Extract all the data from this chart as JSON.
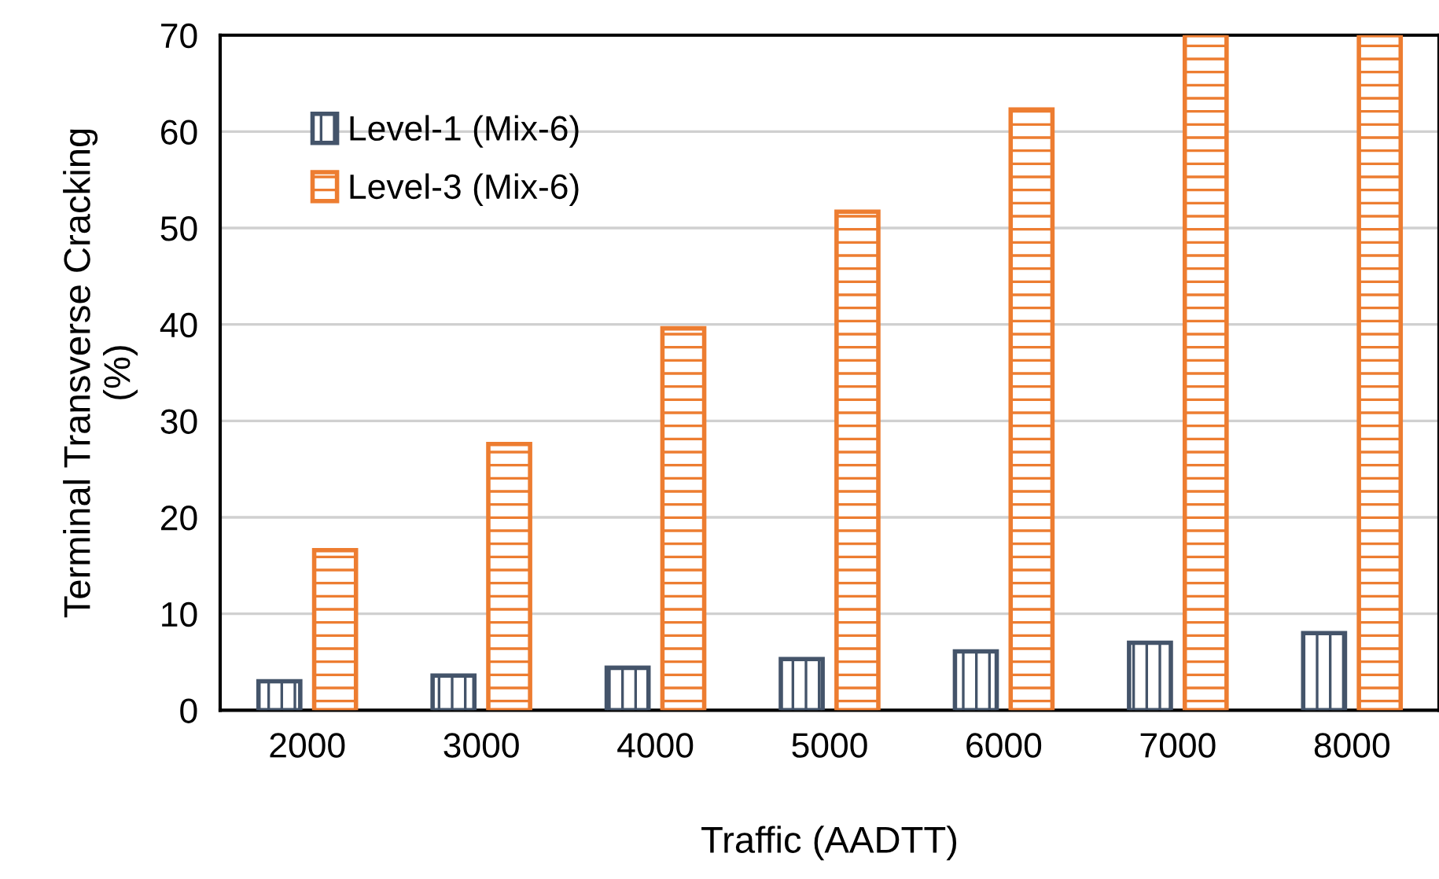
{
  "chart_data": {
    "type": "bar",
    "xlabel": "Traffic (AADTT)",
    "ylabel": "Terminal Transverse Cracking\n(%)",
    "categories": [
      "2000",
      "3000",
      "4000",
      "5000",
      "6000",
      "7000",
      "8000"
    ],
    "series": [
      {
        "name": "Level-1 (Mix-6)",
        "color": "#44546a",
        "values": [
          3.0,
          3.6,
          4.4,
          5.3,
          6.1,
          7.0,
          8.0
        ]
      },
      {
        "name": "Level-3 (Mix-6)",
        "color": "#ed7d31",
        "values": [
          16.6,
          27.6,
          39.6,
          51.7,
          62.3,
          70,
          70
        ]
      }
    ],
    "ylim": [
      0,
      70
    ],
    "yticks": [
      0,
      10,
      20,
      30,
      40,
      50,
      60,
      70
    ],
    "grid": "y",
    "legend": "top left"
  }
}
